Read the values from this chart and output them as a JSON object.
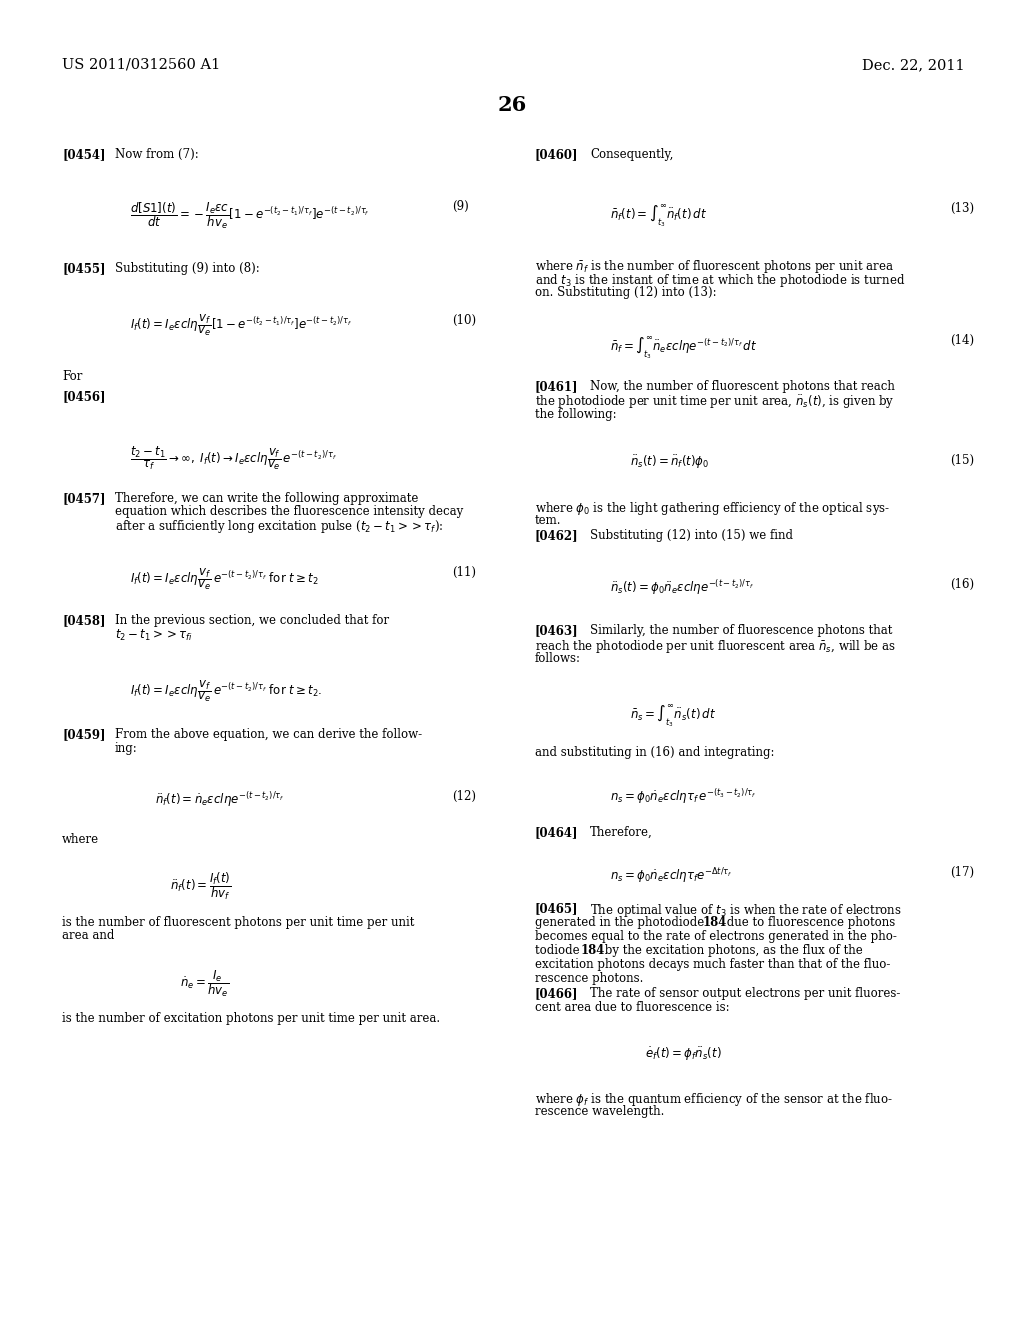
{
  "background_color": "#ffffff",
  "header_left": "US 2011/0312560 A1",
  "header_right": "Dec. 22, 2011",
  "page_number": "26"
}
